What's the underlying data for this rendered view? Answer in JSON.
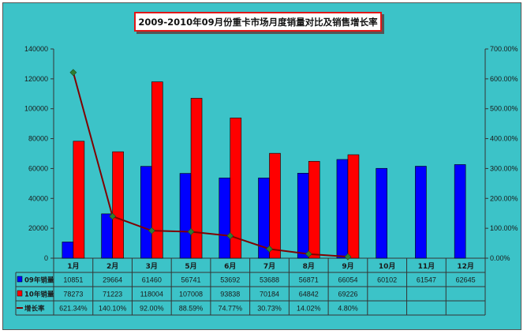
{
  "title": "2009-2010年09月份重卡市场月度销量对比及销售增长率",
  "colors": {
    "background": "#3cc3c8",
    "series_2009": "#0000ff",
    "series_2010": "#ff0000",
    "growth_line": "#800000",
    "growth_marker": "#2e7d32"
  },
  "chart_data": {
    "type": "bar",
    "categories": [
      "1月",
      "2月",
      "3月",
      "5月",
      "6月",
      "7月",
      "8月",
      "9月",
      "10月",
      "11月",
      "12月"
    ],
    "series": [
      {
        "name": "09年销量",
        "axis": "left",
        "values": [
          10851,
          29664,
          61460,
          56741,
          53692,
          53688,
          56871,
          66054,
          60102,
          61547,
          62645
        ]
      },
      {
        "name": "10年销量",
        "axis": "left",
        "values": [
          78273,
          71223,
          118004,
          107008,
          93838,
          70184,
          64842,
          69226,
          null,
          null,
          null
        ]
      },
      {
        "name": "增长率",
        "axis": "right",
        "type": "line",
        "unit": "%",
        "values": [
          621.34,
          140.1,
          92.0,
          88.59,
          74.77,
          30.73,
          14.02,
          4.8,
          null,
          null,
          null
        ],
        "labels": [
          "621.34%",
          "140.10%",
          "92.00%",
          "88.59%",
          "74.77%",
          "30.73%",
          "14.02%",
          "4.80%",
          "",
          "",
          ""
        ]
      }
    ],
    "ylim": [
      0,
      140000
    ],
    "yticks": [
      "0",
      "20000",
      "40000",
      "60000",
      "80000",
      "100000",
      "120000",
      "140000"
    ],
    "y2lim": [
      0,
      700
    ],
    "y2ticks": [
      "0.00%",
      "100.00%",
      "200.00%",
      "300.00%",
      "400.00%",
      "500.00%",
      "600.00%",
      "700.00%"
    ],
    "data_table": {
      "rows": [
        {
          "label": "09年销量",
          "cells": [
            "10851",
            "29664",
            "61460",
            "56741",
            "53692",
            "53688",
            "56871",
            "66054",
            "60102",
            "61547",
            "62645"
          ]
        },
        {
          "label": "10年销量",
          "cells": [
            "78273",
            "71223",
            "118004",
            "107008",
            "93838",
            "70184",
            "64842",
            "69226",
            "",
            "",
            ""
          ]
        },
        {
          "label": "增长率",
          "cells": [
            "621.34%",
            "140.10%",
            "92.00%",
            "88.59%",
            "74.77%",
            "30.73%",
            "14.02%",
            "4.80%",
            "",
            "",
            ""
          ]
        }
      ]
    },
    "grid": false,
    "legend": "in data table"
  }
}
